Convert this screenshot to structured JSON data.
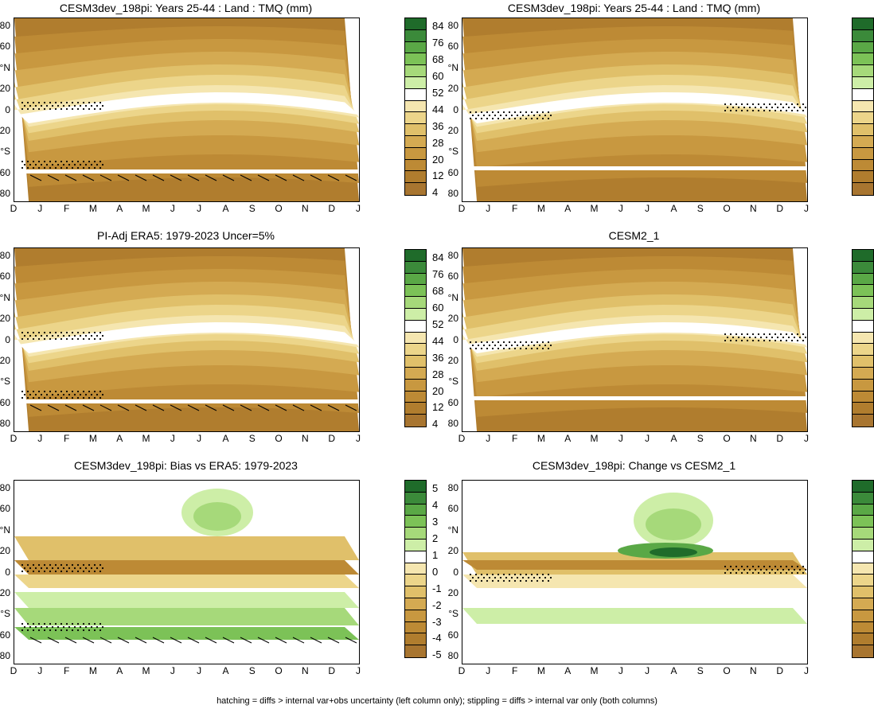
{
  "footnote": "hatching = diffs > internal var+obs uncertainty (left column only); stippling = diffs > internal var only (both columns)",
  "months": [
    "D",
    "J",
    "F",
    "M",
    "A",
    "M",
    "J",
    "J",
    "A",
    "S",
    "O",
    "N",
    "D",
    "J"
  ],
  "lat_labels": [
    "80",
    "60",
    "°N",
    "20",
    "0",
    "20",
    "°S",
    "60",
    "80"
  ],
  "abs_scale": {
    "labels": [
      "84",
      "76",
      "68",
      "60",
      "52",
      "44",
      "36",
      "28",
      "20",
      "12",
      "4"
    ],
    "colors": [
      "#1f6b2a",
      "#3b8a3a",
      "#5aa846",
      "#7cc257",
      "#a6d97a",
      "#cdeea7",
      "#ffffff",
      "#f5e6b0",
      "#ecd58a",
      "#e0c06a",
      "#d4aa52",
      "#c89840",
      "#bd8a35",
      "#b07d2e",
      "#a87530"
    ]
  },
  "diff_scale": {
    "labels": [
      "5",
      "4",
      "3",
      "2",
      "1",
      "0",
      "-1",
      "-2",
      "-3",
      "-4",
      "-5"
    ],
    "colors": [
      "#1f6b2a",
      "#3b8a3a",
      "#5aa846",
      "#7cc257",
      "#a6d97a",
      "#cdeea7",
      "#ffffff",
      "#f5e6b0",
      "#ecd58a",
      "#e0c06a",
      "#d4aa52",
      "#c89840",
      "#bd8a35",
      "#b07d2e",
      "#a87530"
    ]
  },
  "chart_data": [
    {
      "type": "heatmap",
      "title": "CESM3dev_198pi: Years 25-44 : Land : TMQ (mm)",
      "kind": "abs",
      "variant": "a",
      "x": [
        "D",
        "J",
        "F",
        "M",
        "A",
        "M",
        "J",
        "J",
        "A",
        "S",
        "O",
        "N",
        "D",
        "J"
      ],
      "y": [
        "80",
        "60",
        "°N",
        "20",
        "0",
        "20",
        "°S",
        "60",
        "80"
      ]
    },
    {
      "type": "heatmap",
      "title": "CESM3dev_198pi: Years 25-44 : Land : TMQ (mm)",
      "kind": "abs",
      "variant": "b",
      "x": [
        "D",
        "J",
        "F",
        "M",
        "A",
        "M",
        "J",
        "J",
        "A",
        "S",
        "O",
        "N",
        "D",
        "J"
      ],
      "y": [
        "80",
        "60",
        "°N",
        "20",
        "0",
        "20",
        "°S",
        "60",
        "80"
      ]
    },
    {
      "type": "heatmap",
      "title": "PI-Adj ERA5: 1979-2023 Uncer=5%",
      "kind": "abs",
      "variant": "a",
      "x": [
        "D",
        "J",
        "F",
        "M",
        "A",
        "M",
        "J",
        "J",
        "A",
        "S",
        "O",
        "N",
        "D",
        "J"
      ],
      "y": [
        "80",
        "60",
        "°N",
        "20",
        "0",
        "20",
        "°S",
        "60",
        "80"
      ]
    },
    {
      "type": "heatmap",
      "title": "CESM2_1",
      "kind": "abs",
      "variant": "b",
      "x": [
        "D",
        "J",
        "F",
        "M",
        "A",
        "M",
        "J",
        "J",
        "A",
        "S",
        "O",
        "N",
        "D",
        "J"
      ],
      "y": [
        "80",
        "60",
        "°N",
        "20",
        "0",
        "20",
        "°S",
        "60",
        "80"
      ]
    },
    {
      "type": "heatmap",
      "title": "CESM3dev_198pi: Bias vs ERA5: 1979-2023",
      "kind": "bias",
      "variant": "a",
      "x": [
        "D",
        "J",
        "F",
        "M",
        "A",
        "M",
        "J",
        "J",
        "A",
        "S",
        "O",
        "N",
        "D",
        "J"
      ],
      "y": [
        "80",
        "60",
        "°N",
        "20",
        "0",
        "20",
        "°S",
        "60",
        "80"
      ]
    },
    {
      "type": "heatmap",
      "title": "CESM3dev_198pi: Change vs CESM2_1",
      "kind": "change",
      "variant": "b",
      "x": [
        "D",
        "J",
        "F",
        "M",
        "A",
        "M",
        "J",
        "J",
        "A",
        "S",
        "O",
        "N",
        "D",
        "J"
      ],
      "y": [
        "80",
        "60",
        "°N",
        "20",
        "0",
        "20",
        "°S",
        "60",
        "80"
      ]
    }
  ]
}
